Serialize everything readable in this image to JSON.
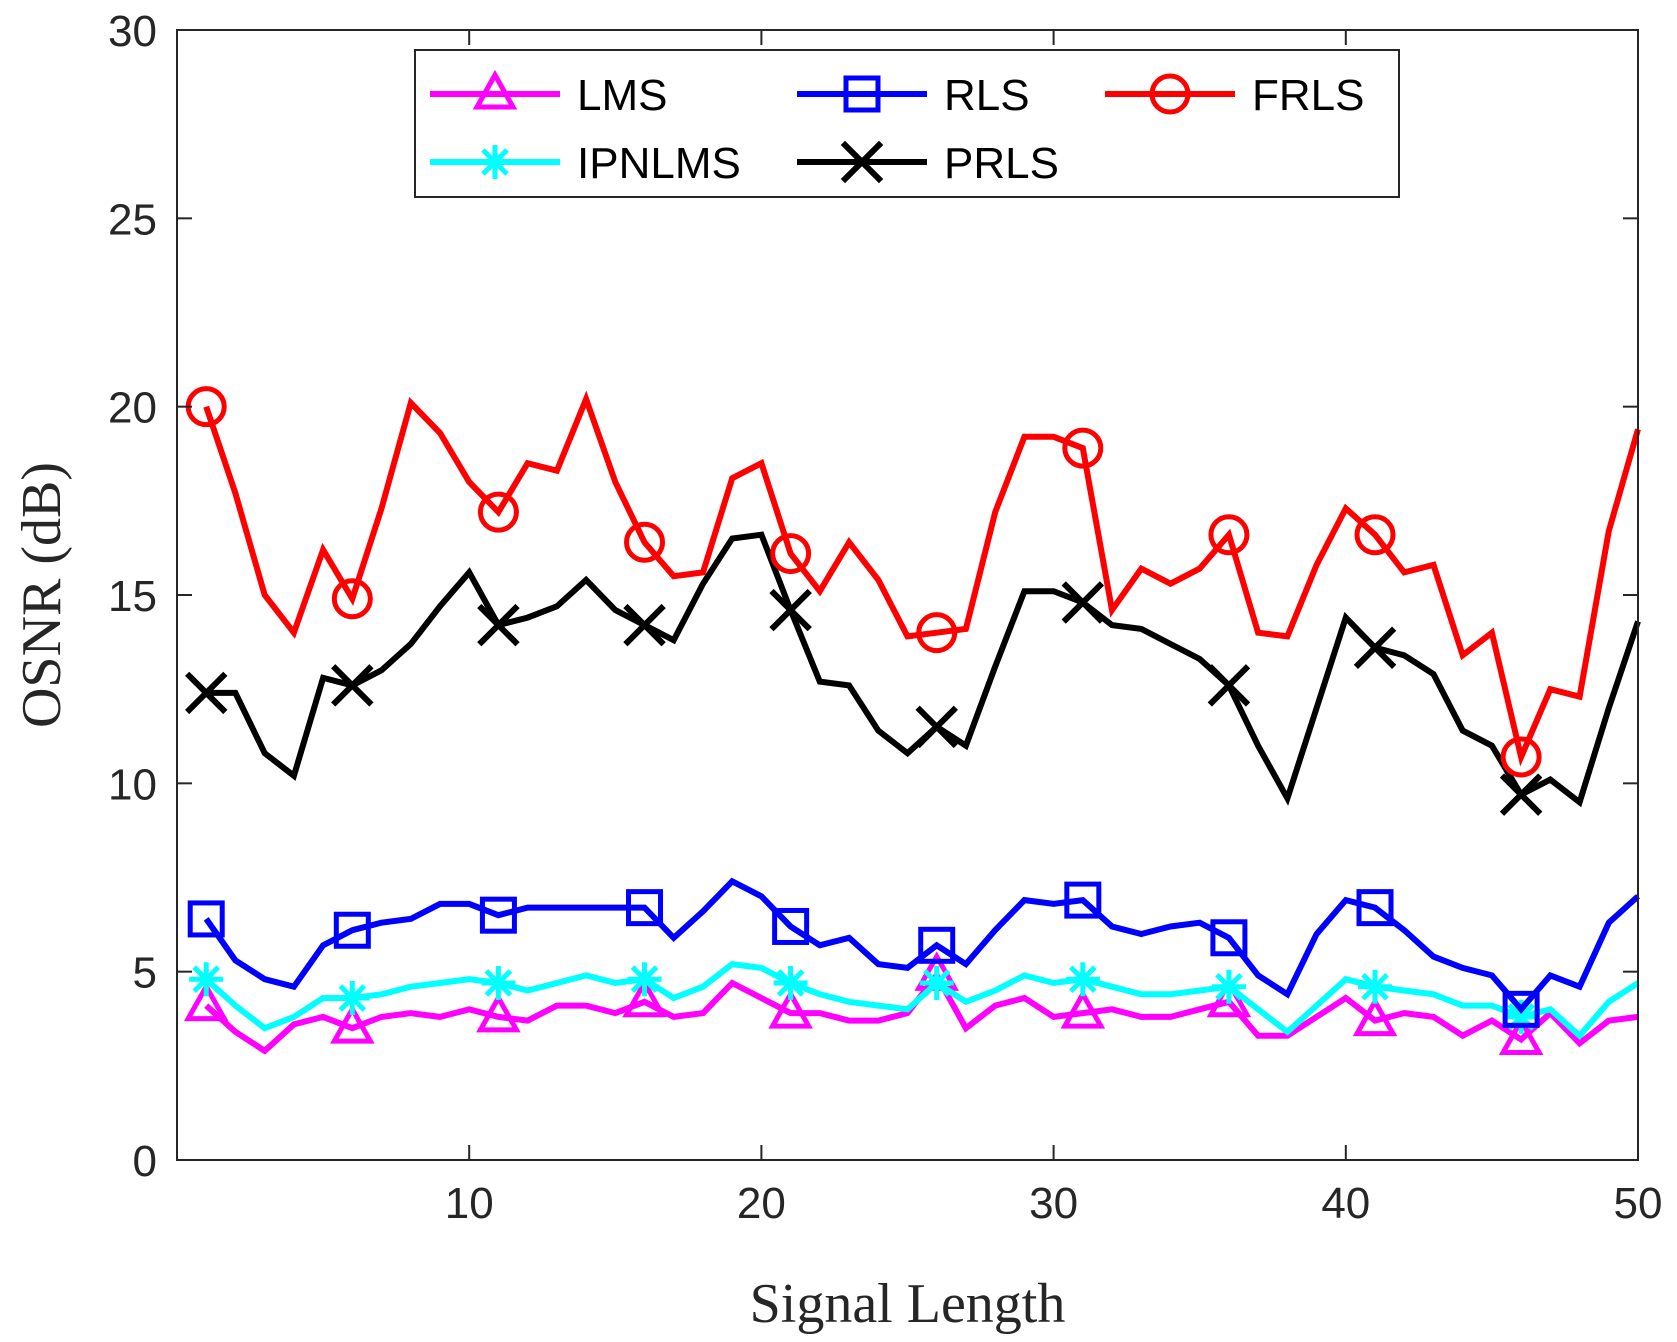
{
  "chart_data": {
    "type": "line",
    "title": "",
    "xlabel": "Signal Length",
    "ylabel": "OSNR (dB)",
    "xlim": [
      0,
      50
    ],
    "ylim": [
      0,
      30
    ],
    "xticks": [
      10,
      20,
      30,
      40,
      50
    ],
    "yticks": [
      0,
      5,
      10,
      15,
      20,
      25,
      30
    ],
    "grid": false,
    "legend_position": "top",
    "x": [
      1,
      2,
      3,
      4,
      5,
      6,
      7,
      8,
      9,
      10,
      11,
      12,
      13,
      14,
      15,
      16,
      17,
      18,
      19,
      20,
      21,
      22,
      23,
      24,
      25,
      26,
      27,
      28,
      29,
      30,
      31,
      32,
      33,
      34,
      35,
      36,
      37,
      38,
      39,
      40,
      41,
      42,
      43,
      44,
      45,
      46,
      47,
      48,
      49,
      50
    ],
    "marker_every": 5,
    "series": [
      {
        "name": "LMS",
        "color": "#ff00ff",
        "marker": "triangle",
        "values": [
          4.1,
          3.4,
          2.9,
          3.6,
          3.8,
          3.5,
          3.8,
          3.9,
          3.8,
          4.0,
          3.8,
          3.7,
          4.1,
          4.1,
          3.9,
          4.2,
          3.8,
          3.9,
          4.7,
          4.3,
          3.9,
          3.9,
          3.7,
          3.7,
          3.9,
          4.9,
          3.5,
          4.1,
          4.3,
          3.8,
          3.9,
          4.0,
          3.8,
          3.8,
          4.0,
          4.2,
          3.3,
          3.3,
          3.8,
          4.3,
          3.7,
          3.9,
          3.8,
          3.3,
          3.7,
          3.2,
          3.9,
          3.1,
          3.7,
          3.8
        ]
      },
      {
        "name": "IPNLMS",
        "color": "#00ffff",
        "marker": "star",
        "values": [
          4.8,
          4.1,
          3.5,
          3.8,
          4.3,
          4.3,
          4.4,
          4.6,
          4.7,
          4.8,
          4.7,
          4.5,
          4.7,
          4.9,
          4.7,
          4.8,
          4.3,
          4.6,
          5.2,
          5.1,
          4.7,
          4.4,
          4.2,
          4.1,
          4.0,
          4.7,
          4.2,
          4.5,
          4.9,
          4.7,
          4.8,
          4.6,
          4.4,
          4.4,
          4.5,
          4.6,
          4.0,
          3.4,
          4.1,
          4.8,
          4.6,
          4.5,
          4.4,
          4.1,
          4.1,
          3.8,
          4.0,
          3.3,
          4.2,
          4.7
        ]
      },
      {
        "name": "RLS",
        "color": "#0000ff",
        "marker": "square",
        "values": [
          6.4,
          5.3,
          4.8,
          4.6,
          5.7,
          6.1,
          6.3,
          6.4,
          6.8,
          6.8,
          6.5,
          6.7,
          6.7,
          6.7,
          6.7,
          6.7,
          5.9,
          6.6,
          7.4,
          7.0,
          6.2,
          5.7,
          5.9,
          5.2,
          5.1,
          5.7,
          5.2,
          6.1,
          6.9,
          6.8,
          6.9,
          6.2,
          6.0,
          6.2,
          6.3,
          5.9,
          4.9,
          4.4,
          6.0,
          6.9,
          6.7,
          6.1,
          5.4,
          5.1,
          4.9,
          4.0,
          4.9,
          4.6,
          6.3,
          7.0
        ]
      },
      {
        "name": "PRLS",
        "color": "#000000",
        "marker": "x",
        "values": [
          12.4,
          12.4,
          10.8,
          10.2,
          12.8,
          12.6,
          13.0,
          13.7,
          14.7,
          15.6,
          14.2,
          14.4,
          14.7,
          15.4,
          14.6,
          14.2,
          13.8,
          15.3,
          16.5,
          16.6,
          14.6,
          12.7,
          12.6,
          11.4,
          10.8,
          11.5,
          11.0,
          13.1,
          15.1,
          15.1,
          14.8,
          14.2,
          14.1,
          13.7,
          13.3,
          12.6,
          11.0,
          9.6,
          12.0,
          14.4,
          13.6,
          13.4,
          12.9,
          11.4,
          11.0,
          9.7,
          10.1,
          9.5,
          12.0,
          14.3
        ]
      },
      {
        "name": "FRLS",
        "color": "#ff0000",
        "marker": "circle",
        "values": [
          20.0,
          17.7,
          15.0,
          14.0,
          16.2,
          14.9,
          17.3,
          20.1,
          19.3,
          18.0,
          17.2,
          18.5,
          18.3,
          20.2,
          18.0,
          16.4,
          15.5,
          15.6,
          18.1,
          18.5,
          16.1,
          15.1,
          16.4,
          15.4,
          13.9,
          14.0,
          14.1,
          17.2,
          19.2,
          19.2,
          18.9,
          14.6,
          15.7,
          15.3,
          15.7,
          16.6,
          14.0,
          13.9,
          15.8,
          17.3,
          16.6,
          15.6,
          15.8,
          13.4,
          14.0,
          10.7,
          12.5,
          12.3,
          16.7,
          19.4
        ]
      }
    ],
    "legend_entries": [
      "LMS",
      "RLS",
      "FRLS",
      "IPNLMS",
      "PRLS"
    ]
  }
}
